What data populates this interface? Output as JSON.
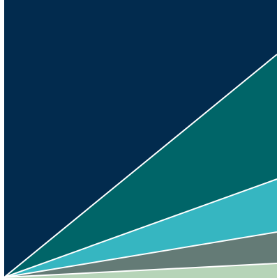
{
  "background": "#ffffff",
  "divider_color": "#ffffff",
  "wedges": [
    {
      "name": "navy",
      "color": "#022b4e"
    },
    {
      "name": "dark-teal",
      "color": "#006568"
    },
    {
      "name": "aqua",
      "color": "#36b6c1"
    },
    {
      "name": "slate-gray",
      "color": "#647b76"
    },
    {
      "name": "pale-green",
      "color": "#b6d4b8"
    }
  ]
}
